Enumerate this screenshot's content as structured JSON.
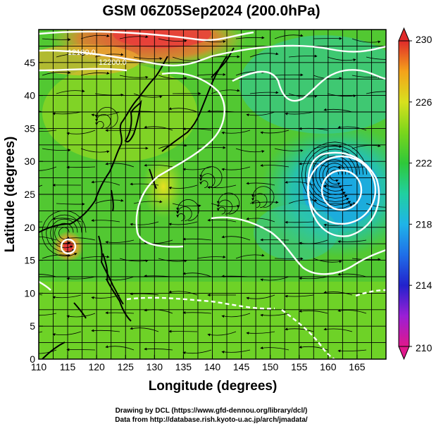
{
  "title": "GSM 06Z05Sep2024 (200.0hPa)",
  "x_axis": {
    "label": "Longitude (degrees)",
    "range": [
      110,
      170
    ],
    "ticks": [
      110,
      115,
      120,
      125,
      130,
      135,
      140,
      145,
      150,
      155,
      160,
      165
    ]
  },
  "y_axis": {
    "label": "Latitude  (degrees)",
    "range": [
      0,
      50
    ],
    "ticks": [
      0,
      5,
      10,
      15,
      20,
      25,
      30,
      35,
      40,
      45
    ]
  },
  "colorbar": {
    "ticks": [
      "230",
      "226",
      "222",
      "218",
      "214",
      "210"
    ],
    "range": [
      210,
      230
    ],
    "colors": [
      "#e0188c",
      "#9a1fd6",
      "#2222cc",
      "#1f6fe8",
      "#1fb4e8",
      "#20d0a0",
      "#2fc83a",
      "#7ad61c",
      "#d8e01e",
      "#f4a21a",
      "#ee5a2a",
      "#e02a2a"
    ]
  },
  "contour_labels": [
    "12100.0",
    "12200.0"
  ],
  "cyclone_centers": [
    {
      "name": "typhoon",
      "lon": 114.5,
      "lat": 19.2
    },
    {
      "name": "upper-low",
      "lon": 161.2,
      "lat": 28.0
    }
  ],
  "credits": {
    "line1": "Drawing by DCL (https://www.gfd-dennou.org/library/dcl/)",
    "line2": "Data from http://database.rish.kyoto-u.ac.jp/arch/jmadata/"
  }
}
